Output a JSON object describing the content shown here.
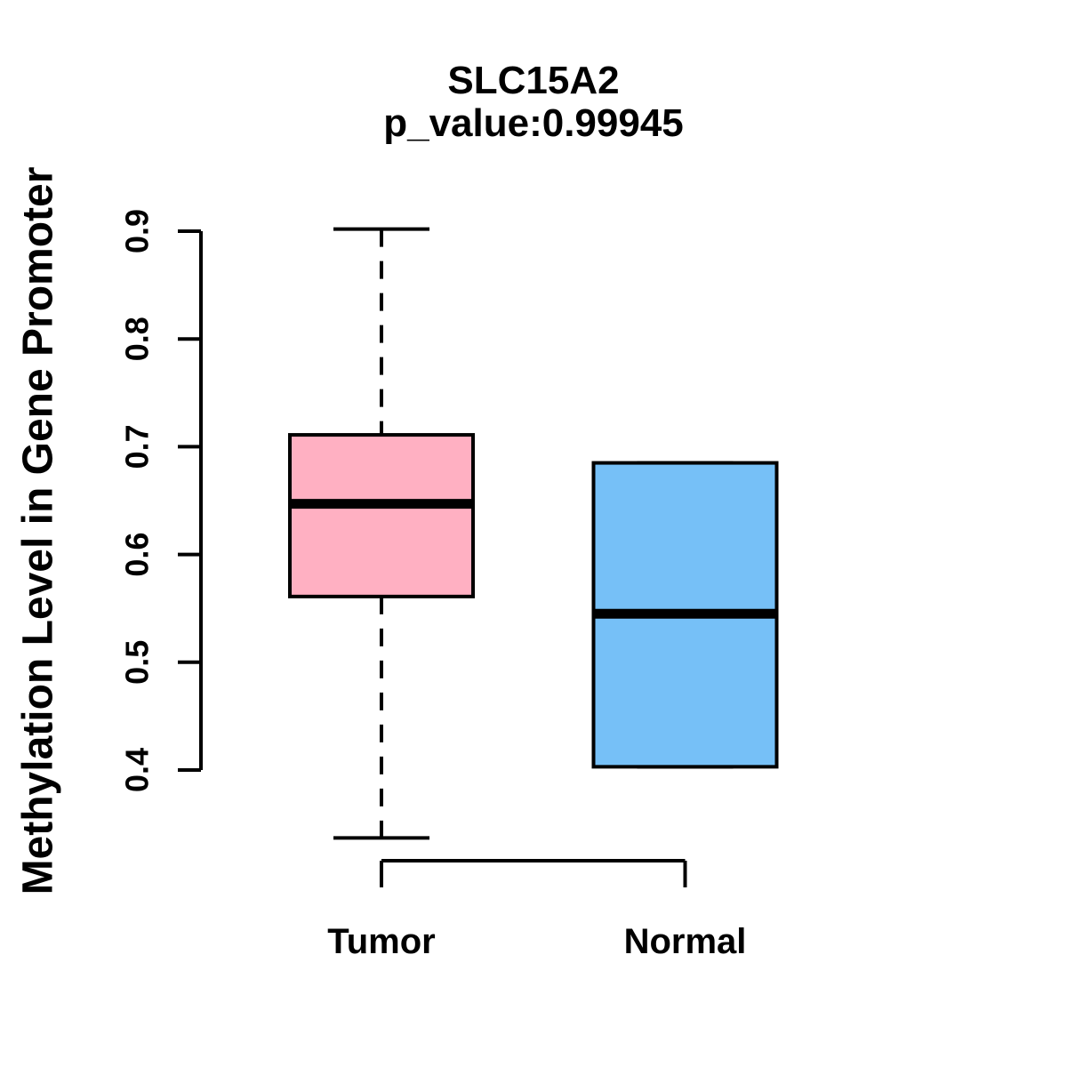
{
  "figure": {
    "title": "SLC15A2",
    "subtitle": "p_value:0.99945"
  },
  "axes": {
    "y_label": "Methylation Level in Gene Promoter",
    "y_tick_labels": [
      "0.4",
      "0.5",
      "0.6",
      "0.7",
      "0.8",
      "0.9"
    ],
    "x_tick_labels": [
      "Tumor",
      "Normal"
    ]
  },
  "chart_data": {
    "type": "boxplot",
    "title": "SLC15A2",
    "subtitle": "p_value:0.99945",
    "gene": "SLC15A2",
    "p_value": 0.99945,
    "ylabel": "Methylation Level in Gene Promoter",
    "categories": [
      "Tumor",
      "Normal"
    ],
    "y_ticks": [
      0.4,
      0.5,
      0.6,
      0.7,
      0.8,
      0.9
    ],
    "ylim": [
      0.3,
      0.93
    ],
    "grid": false,
    "legend": "none",
    "whisker_style": "dashed",
    "border_color": "#000000",
    "median_color": "#000000",
    "series": [
      {
        "name": "Tumor",
        "fill_color": "#FFB0C2",
        "whisker_low": 0.337,
        "q1": 0.561,
        "median": 0.647,
        "q3": 0.711,
        "whisker_high": 0.902
      },
      {
        "name": "Normal",
        "fill_color": "#76C0F7",
        "whisker_low": 0.403,
        "q1": 0.403,
        "median": 0.545,
        "q3": 0.685,
        "whisker_high": 0.685
      }
    ]
  }
}
